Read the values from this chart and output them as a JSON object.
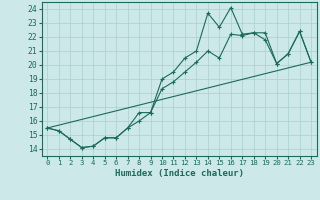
{
  "title": "",
  "xlabel": "Humidex (Indice chaleur)",
  "background_color": "#cce8e8",
  "line_color": "#1a6b5a",
  "grid_color": "#a8d0d0",
  "xlim": [
    -0.5,
    23.5
  ],
  "ylim": [
    13.5,
    24.5
  ],
  "xticks": [
    0,
    1,
    2,
    3,
    4,
    5,
    6,
    7,
    8,
    9,
    10,
    11,
    12,
    13,
    14,
    15,
    16,
    17,
    18,
    19,
    20,
    21,
    22,
    23
  ],
  "yticks": [
    14,
    15,
    16,
    17,
    18,
    19,
    20,
    21,
    22,
    23,
    24
  ],
  "line1_x": [
    0,
    1,
    2,
    3,
    4,
    5,
    6,
    7,
    8,
    9,
    10,
    11,
    12,
    13,
    14,
    15,
    16,
    17,
    18,
    19,
    20,
    21,
    22,
    23
  ],
  "line1_y": [
    15.5,
    15.3,
    14.7,
    14.1,
    14.2,
    14.8,
    14.8,
    15.5,
    16.6,
    16.6,
    19.0,
    19.5,
    20.5,
    21.0,
    23.7,
    22.7,
    24.1,
    22.2,
    22.3,
    22.3,
    20.1,
    20.8,
    22.4,
    20.2
  ],
  "line2_x": [
    0,
    1,
    2,
    3,
    4,
    5,
    6,
    7,
    8,
    9,
    10,
    11,
    12,
    13,
    14,
    15,
    16,
    17,
    18,
    19,
    20,
    21,
    22,
    23
  ],
  "line2_y": [
    15.5,
    15.3,
    14.7,
    14.1,
    14.2,
    14.8,
    14.8,
    15.5,
    16.0,
    16.6,
    18.3,
    18.8,
    19.5,
    20.2,
    21.0,
    20.5,
    22.2,
    22.1,
    22.3,
    21.8,
    20.1,
    20.8,
    22.4,
    20.2
  ],
  "line3_x": [
    0,
    23
  ],
  "line3_y": [
    15.5,
    20.2
  ]
}
